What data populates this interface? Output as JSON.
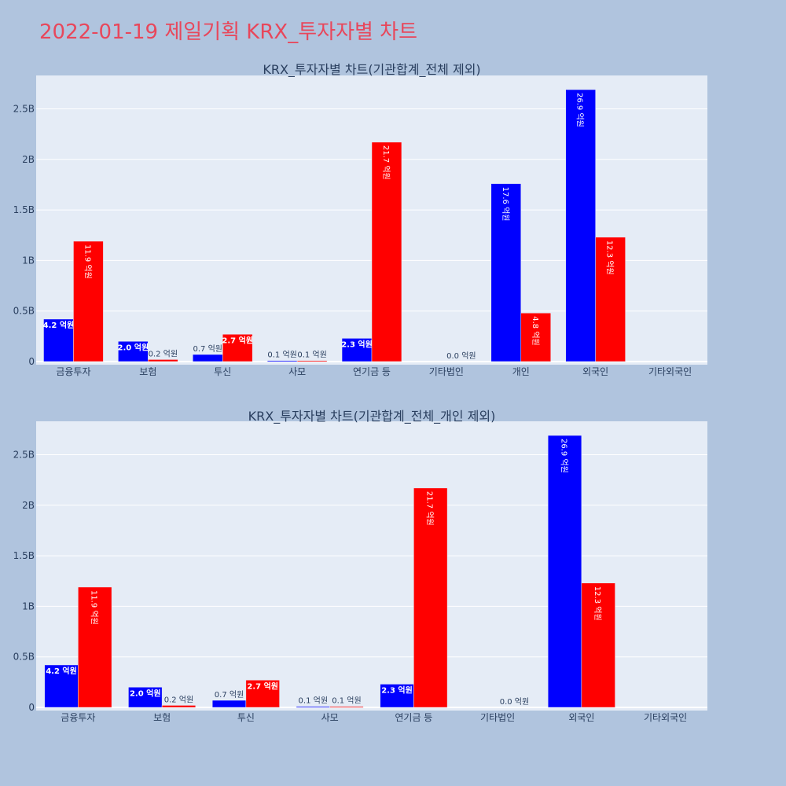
{
  "page_title": "2022-01-19 제일기획 KRX_투자자별 차트",
  "colors": {
    "background": "#b0c4de",
    "plot_bg": "#e5ecf6",
    "grid": "#ffffff",
    "title": "#e8475b",
    "text": "#2a3f5f",
    "buy": "#0000ff",
    "sell": "#ff0000"
  },
  "chart_data": [
    {
      "type": "bar",
      "title": "KRX_투자자별 차트(기관합계_전체 제외)",
      "categories": [
        "금융투자",
        "보험",
        "투신",
        "사모",
        "연기금 등",
        "기타법인",
        "개인",
        "외국인",
        "기타외국인"
      ],
      "series": [
        {
          "color": "#0000ff",
          "values": [
            420000000,
            200000000,
            70000000,
            10000000,
            230000000,
            0,
            1760000000,
            2690000000,
            0
          ],
          "labels": [
            "4.2 억원",
            "2.0 억원",
            "0.7 억원",
            "0.1 억원",
            "2.3 억원",
            "",
            "17.6 억원",
            "26.9 억원",
            ""
          ]
        },
        {
          "color": "#ff0000",
          "values": [
            1190000000,
            20000000,
            270000000,
            10000000,
            2170000000,
            0,
            480000000,
            1230000000,
            0
          ],
          "labels": [
            "11.9 억원",
            "0.2 억원",
            "2.7 억원",
            "0.1 억원",
            "21.7 억원",
            "0.0 억원",
            "4.8 억원",
            "12.3 억원",
            ""
          ]
        }
      ],
      "yticks": [
        0,
        500000000,
        1000000000,
        1500000000,
        2000000000,
        2500000000
      ],
      "ytick_labels": [
        "0",
        "0.5B",
        "1B",
        "1.5B",
        "2B",
        "2.5B"
      ],
      "ylim": [
        0,
        2830000000
      ],
      "grid": true
    },
    {
      "type": "bar",
      "title": "KRX_투자자별 차트(기관합계_전체_개인 제외)",
      "categories": [
        "금융투자",
        "보험",
        "투신",
        "사모",
        "연기금 등",
        "기타법인",
        "외국인",
        "기타외국인"
      ],
      "series": [
        {
          "color": "#0000ff",
          "values": [
            420000000,
            200000000,
            70000000,
            10000000,
            230000000,
            0,
            2690000000,
            0
          ],
          "labels": [
            "4.2 억원",
            "2.0 억원",
            "0.7 억원",
            "0.1 억원",
            "2.3 억원",
            "",
            "26.9 억원",
            ""
          ]
        },
        {
          "color": "#ff0000",
          "values": [
            1190000000,
            20000000,
            270000000,
            10000000,
            2170000000,
            0,
            1230000000,
            0
          ],
          "labels": [
            "11.9 억원",
            "0.2 억원",
            "2.7 억원",
            "0.1 억원",
            "21.7 억원",
            "0.0 억원",
            "12.3 억원",
            ""
          ]
        }
      ],
      "yticks": [
        0,
        500000000,
        1000000000,
        1500000000,
        2000000000,
        2500000000
      ],
      "ytick_labels": [
        "0",
        "0.5B",
        "1B",
        "1.5B",
        "2B",
        "2.5B"
      ],
      "ylim": [
        0,
        2830000000
      ],
      "grid": true
    }
  ]
}
